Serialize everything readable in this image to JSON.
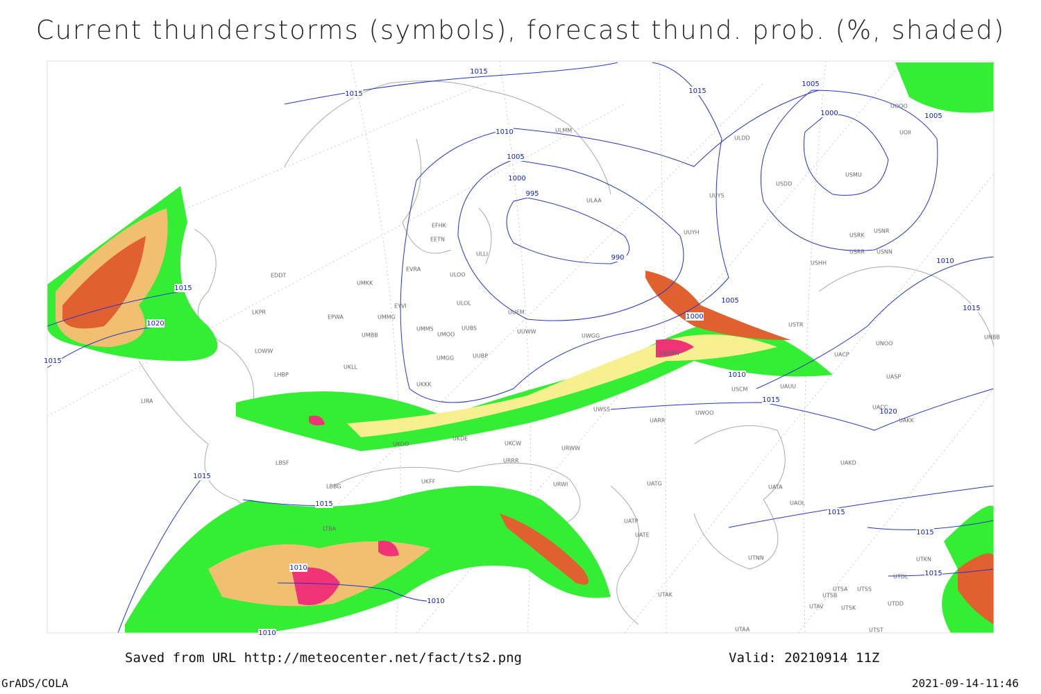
{
  "header": {
    "title": "Current thunderstorms (symbols), forecast thund. prob. (%, shaded)"
  },
  "isobar_labels": [
    1015,
    1015,
    1015,
    1005,
    1000,
    1005,
    1010,
    1005,
    1000,
    995,
    990,
    1010,
    1015,
    1020,
    1015,
    1005,
    1000,
    1010,
    1015,
    1020,
    1015,
    1015,
    1015,
    1015,
    1015,
    1015,
    1010,
    1010,
    1010
  ],
  "station_labels": [
    "ULMM",
    "ULDD",
    "UOOO",
    "UOII",
    "USDD",
    "USMU",
    "ULAA",
    "UUYS",
    "USRK",
    "USNR",
    "USRR",
    "USNN",
    "UUYH",
    "USHH",
    "EFHK",
    "EETN",
    "ULLI",
    "EVRA",
    "ULOO",
    "EDDT",
    "UMKK",
    "EYVI",
    "ULOL",
    "UUEM",
    "EPWA",
    "UMMG",
    "LKPR",
    "UMMS",
    "UMOO",
    "UUBS",
    "UUWW",
    "UWGG",
    "UMBB",
    "LOWW",
    "UWWW",
    "UUBP",
    "UMGG",
    "UKLL",
    "LHBP",
    "UKKK",
    "UWSS",
    "UARR",
    "UWOO",
    "URWW",
    "UKOO",
    "UKDE",
    "UKCW",
    "URRR",
    "LBSF",
    "URWI",
    "UATG",
    "UKFF",
    "LBBG",
    "UATA",
    "UAOL",
    "UATP",
    "UATE",
    "LTBA",
    "UTNN",
    "LIRA",
    "UASP",
    "UACC",
    "UAKK",
    "UAKD",
    "UACP",
    "UNOO",
    "UNBB",
    "USTR",
    "USCM",
    "UAUU",
    "UTSA",
    "UTSB",
    "UTSS",
    "UTAV",
    "UTSK",
    "UTDD",
    "UTDL",
    "UTAA",
    "UTST",
    "UTKN",
    "UTAK"
  ],
  "footer": {
    "source": "Saved from URL http://meteocenter.net/fact/ts2.png",
    "valid": "Valid: 20210914 11Z",
    "software": "GrADS/COLA",
    "timestamp": "2021-09-14-11:46"
  }
}
